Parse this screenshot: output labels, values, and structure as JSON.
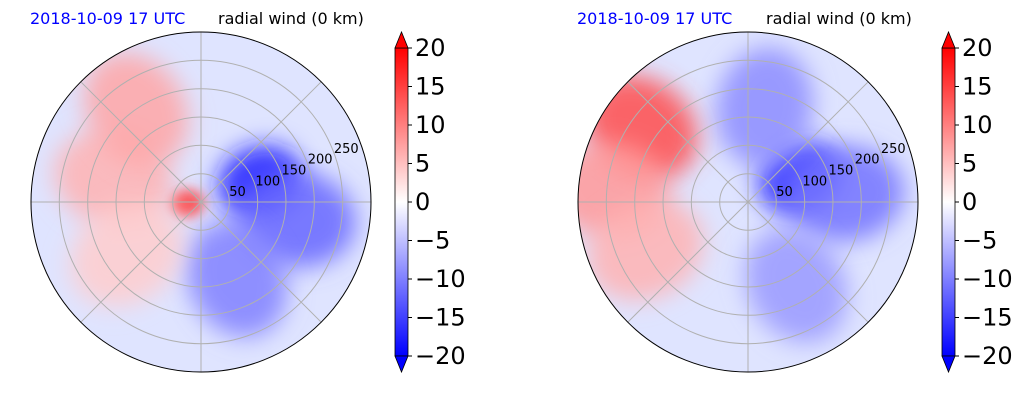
{
  "chart_data": [
    {
      "type": "heatmap",
      "projection": "polar",
      "time_label": "2018-10-09 17 UTC",
      "title": "radial wind (0 km)",
      "radial_ticks": [
        50,
        100,
        150,
        200,
        250
      ],
      "angular_grid_deg": [
        0,
        45,
        90,
        135,
        180,
        225,
        270,
        315
      ],
      "colorbar": {
        "min": -20,
        "max": 20,
        "ticks": [
          "20",
          "15",
          "10",
          "5",
          "0",
          "−5",
          "−10",
          "−15",
          "−20"
        ],
        "colormap": "bwr",
        "extend": "both"
      },
      "features": [
        {
          "kind": "negative-core",
          "azimuth_deg": 20,
          "range": 110,
          "value": -18
        },
        {
          "kind": "negative-broad",
          "azimuth_deg": -10,
          "range": 170,
          "value": -12
        },
        {
          "kind": "negative-south",
          "azimuth_deg": -65,
          "range": 150,
          "value": -10
        },
        {
          "kind": "positive-core",
          "azimuth_deg": 185,
          "range": 25,
          "value": 15
        },
        {
          "kind": "positive-west",
          "azimuth_deg": 165,
          "range": 160,
          "value": 6
        },
        {
          "kind": "positive-northwest",
          "azimuth_deg": 125,
          "range": 200,
          "value": 7
        },
        {
          "kind": "positive-southwest",
          "azimuth_deg": 215,
          "range": 160,
          "value": 4
        }
      ]
    },
    {
      "type": "heatmap",
      "projection": "polar",
      "time_label": "2018-10-09 17 UTC",
      "title": "radial wind (0 km)",
      "radial_ticks": [
        50,
        100,
        150,
        200,
        250
      ],
      "angular_grid_deg": [
        0,
        45,
        90,
        135,
        180,
        225,
        270,
        315
      ],
      "colorbar": {
        "min": -20,
        "max": 20,
        "ticks": [
          "20",
          "15",
          "10",
          "5",
          "0",
          "−5",
          "−10",
          "−15",
          "−20"
        ],
        "colormap": "bwr",
        "extend": "both"
      },
      "features": [
        {
          "kind": "negative-core",
          "azimuth_deg": 25,
          "range": 100,
          "value": -17
        },
        {
          "kind": "negative-broad",
          "azimuth_deg": 5,
          "range": 170,
          "value": -11
        },
        {
          "kind": "negative-north",
          "azimuth_deg": 80,
          "range": 170,
          "value": -9
        },
        {
          "kind": "negative-south",
          "azimuth_deg": -60,
          "range": 170,
          "value": -8
        },
        {
          "kind": "positive-arc-northwest",
          "azimuth_deg": 145,
          "range": 230,
          "value": 14
        },
        {
          "kind": "positive-west-edge",
          "azimuth_deg": 175,
          "range": 245,
          "value": 8
        },
        {
          "kind": "positive-southwest-streak",
          "azimuth_deg": 205,
          "range": 200,
          "value": 6
        }
      ]
    }
  ]
}
